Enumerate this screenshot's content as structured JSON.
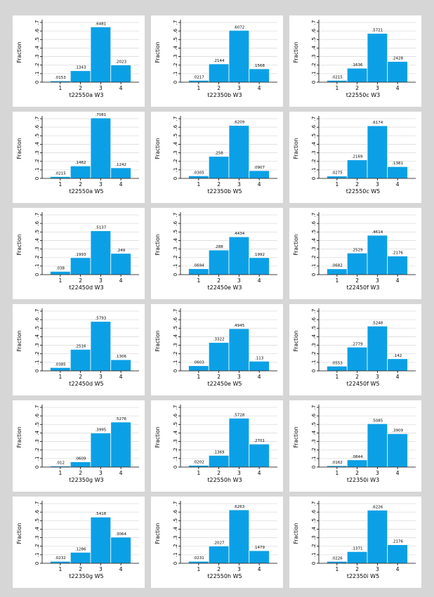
{
  "colors": {
    "bar": "#0ba0e6",
    "bar_edge": "#ffffff",
    "panel_bg": "#ffffff",
    "grid": "#dcdcdc",
    "axis": "#000000",
    "page_bg": "#d6d6d6"
  },
  "chart_data": [
    {
      "type": "bar",
      "xlabel": "t22550a W3",
      "ylabel": "Fraction",
      "categories": [
        "1",
        "2",
        "3",
        "4"
      ],
      "values": [
        0.0153,
        0.1343,
        0.6481,
        0.2023
      ],
      "value_labels": [
        ".0153",
        ".1343",
        ".6481",
        ".2023"
      ],
      "ylim": [
        0,
        0.7
      ],
      "yticks": [
        0,
        0.1,
        0.2,
        0.3,
        0.4,
        0.5,
        0.6,
        0.7
      ],
      "ytick_labels": [
        "0",
        ".1",
        ".2",
        ".3",
        ".4",
        ".5",
        ".6",
        ".7"
      ],
      "grid": true
    },
    {
      "type": "bar",
      "xlabel": "t22350b W3",
      "ylabel": "Fraction",
      "categories": [
        "1",
        "2",
        "3",
        "4"
      ],
      "values": [
        0.0217,
        0.2144,
        0.6072,
        0.1568
      ],
      "value_labels": [
        ".0217",
        ".2144",
        ".6072",
        ".1568"
      ],
      "ylim": [
        0,
        0.7
      ],
      "yticks": [
        0,
        0.1,
        0.2,
        0.3,
        0.4,
        0.5,
        0.6,
        0.7
      ],
      "ytick_labels": [
        "0",
        ".1",
        ".2",
        ".3",
        ".4",
        ".5",
        ".6",
        ".7"
      ],
      "grid": true
    },
    {
      "type": "bar",
      "xlabel": "t22550c W3",
      "ylabel": "Fraction",
      "categories": [
        "1",
        "2",
        "3",
        "4"
      ],
      "values": [
        0.0215,
        0.1636,
        0.5721,
        0.2428
      ],
      "value_labels": [
        ".0215",
        ".1636",
        ".5721",
        ".2428"
      ],
      "ylim": [
        0,
        0.7
      ],
      "yticks": [
        0,
        0.1,
        0.2,
        0.3,
        0.4,
        0.5,
        0.6,
        0.7
      ],
      "ytick_labels": [
        "0",
        ".1",
        ".2",
        ".3",
        ".4",
        ".5",
        ".6",
        ".7"
      ],
      "grid": true
    },
    {
      "type": "bar",
      "xlabel": "t22550a W5",
      "ylabel": "Fraction",
      "categories": [
        "1",
        "2",
        "3",
        "4"
      ],
      "values": [
        0.0215,
        0.1462,
        0.7081,
        0.1242
      ],
      "value_labels": [
        ".0215",
        ".1462",
        ".7081",
        ".1242"
      ],
      "ylim": [
        0,
        0.7
      ],
      "yticks": [
        0,
        0.1,
        0.2,
        0.3,
        0.4,
        0.5,
        0.6,
        0.7
      ],
      "ytick_labels": [
        "0",
        ".1",
        ".2",
        ".3",
        ".4",
        ".5",
        ".6",
        ".7"
      ],
      "grid": true
    },
    {
      "type": "bar",
      "xlabel": "t22350b W5",
      "ylabel": "Fraction",
      "categories": [
        "1",
        "2",
        "3",
        "4"
      ],
      "values": [
        0.0305,
        0.258,
        0.6209,
        0.0907
      ],
      "value_labels": [
        ".0305",
        ".258",
        ".6209",
        ".0907"
      ],
      "ylim": [
        0,
        0.7
      ],
      "yticks": [
        0,
        0.1,
        0.2,
        0.3,
        0.4,
        0.5,
        0.6,
        0.7
      ],
      "ytick_labels": [
        "0",
        ".1",
        ".2",
        ".3",
        ".4",
        ".5",
        ".6",
        ".7"
      ],
      "grid": true
    },
    {
      "type": "bar",
      "xlabel": "t22550c W5",
      "ylabel": "Fraction",
      "categories": [
        "1",
        "2",
        "3",
        "4"
      ],
      "values": [
        0.0275,
        0.2169,
        0.6174,
        0.1381
      ],
      "value_labels": [
        ".0275",
        ".2169",
        ".6174",
        ".1381"
      ],
      "ylim": [
        0,
        0.7
      ],
      "yticks": [
        0,
        0.1,
        0.2,
        0.3,
        0.4,
        0.5,
        0.6,
        0.7
      ],
      "ytick_labels": [
        "0",
        ".1",
        ".2",
        ".3",
        ".4",
        ".5",
        ".6",
        ".7"
      ],
      "grid": true
    },
    {
      "type": "bar",
      "xlabel": "t22450d W3",
      "ylabel": "Fraction",
      "categories": [
        "1",
        "2",
        "3",
        "4"
      ],
      "values": [
        0.038,
        0.1993,
        0.5137,
        0.249
      ],
      "value_labels": [
        ".038",
        ".1993",
        ".5137",
        ".249"
      ],
      "ylim": [
        0,
        0.7
      ],
      "yticks": [
        0,
        0.1,
        0.2,
        0.3,
        0.4,
        0.5,
        0.6,
        0.7
      ],
      "ytick_labels": [
        "0",
        ".1",
        ".2",
        ".3",
        ".4",
        ".5",
        ".6",
        ".7"
      ],
      "grid": true
    },
    {
      "type": "bar",
      "xlabel": "t22450e W3",
      "ylabel": "Fraction",
      "categories": [
        "1",
        "2",
        "3",
        "4"
      ],
      "values": [
        0.0694,
        0.288,
        0.4434,
        0.1992
      ],
      "value_labels": [
        ".0694",
        ".288",
        ".4434",
        ".1992"
      ],
      "ylim": [
        0,
        0.7
      ],
      "yticks": [
        0,
        0.1,
        0.2,
        0.3,
        0.4,
        0.5,
        0.6,
        0.7
      ],
      "ytick_labels": [
        "0",
        ".1",
        ".2",
        ".3",
        ".4",
        ".5",
        ".6",
        ".7"
      ],
      "grid": true
    },
    {
      "type": "bar",
      "xlabel": "t22450f W3",
      "ylabel": "Fraction",
      "categories": [
        "1",
        "2",
        "3",
        "4"
      ],
      "values": [
        0.0682,
        0.2529,
        0.4614,
        0.2176
      ],
      "value_labels": [
        ".0682",
        ".2529",
        ".4614",
        ".2176"
      ],
      "ylim": [
        0,
        0.7
      ],
      "yticks": [
        0,
        0.1,
        0.2,
        0.3,
        0.4,
        0.5,
        0.6,
        0.7
      ],
      "ytick_labels": [
        "0",
        ".1",
        ".2",
        ".3",
        ".4",
        ".5",
        ".6",
        ".7"
      ],
      "grid": true
    },
    {
      "type": "bar",
      "xlabel": "t22450d W5",
      "ylabel": "Fraction",
      "categories": [
        "1",
        "2",
        "3",
        "4"
      ],
      "values": [
        0.0385,
        0.2516,
        0.5793,
        0.1306
      ],
      "value_labels": [
        ".0385",
        ".2516",
        ".5793",
        ".1306"
      ],
      "ylim": [
        0,
        0.7
      ],
      "yticks": [
        0,
        0.1,
        0.2,
        0.3,
        0.4,
        0.5,
        0.6,
        0.7
      ],
      "ytick_labels": [
        "0",
        ".1",
        ".2",
        ".3",
        ".4",
        ".5",
        ".6",
        ".7"
      ],
      "grid": true
    },
    {
      "type": "bar",
      "xlabel": "t22450e W5",
      "ylabel": "Fraction",
      "categories": [
        "1",
        "2",
        "3",
        "4"
      ],
      "values": [
        0.0603,
        0.3322,
        0.4945,
        0.113
      ],
      "value_labels": [
        ".0603",
        ".3322",
        ".4945",
        ".113"
      ],
      "ylim": [
        0,
        0.7
      ],
      "yticks": [
        0,
        0.1,
        0.2,
        0.3,
        0.4,
        0.5,
        0.6,
        0.7
      ],
      "ytick_labels": [
        "0",
        ".1",
        ".2",
        ".3",
        ".4",
        ".5",
        ".6",
        ".7"
      ],
      "grid": true
    },
    {
      "type": "bar",
      "xlabel": "t22450f W5",
      "ylabel": "Fraction",
      "categories": [
        "1",
        "2",
        "3",
        "4"
      ],
      "values": [
        0.0553,
        0.2779,
        0.5248,
        0.142
      ],
      "value_labels": [
        ".0553",
        ".2779",
        ".5248",
        ".142"
      ],
      "ylim": [
        0,
        0.7
      ],
      "yticks": [
        0,
        0.1,
        0.2,
        0.3,
        0.4,
        0.5,
        0.6,
        0.7
      ],
      "ytick_labels": [
        "0",
        ".1",
        ".2",
        ".3",
        ".4",
        ".5",
        ".6",
        ".7"
      ],
      "grid": true
    },
    {
      "type": "bar",
      "xlabel": "t22350g W3",
      "ylabel": "Fraction",
      "categories": [
        "1",
        "2",
        "3",
        "4"
      ],
      "values": [
        0.012,
        0.0609,
        0.3995,
        0.5276
      ],
      "value_labels": [
        ".012",
        ".0609",
        ".3995",
        ".5276"
      ],
      "ylim": [
        0,
        0.7
      ],
      "yticks": [
        0,
        0.1,
        0.2,
        0.3,
        0.4,
        0.5,
        0.6,
        0.7
      ],
      "ytick_labels": [
        "0",
        ".1",
        ".2",
        ".3",
        ".4",
        ".5",
        ".6",
        ".7"
      ],
      "grid": true
    },
    {
      "type": "bar",
      "xlabel": "t22550h W3",
      "ylabel": "Fraction",
      "categories": [
        "1",
        "2",
        "3",
        "4"
      ],
      "values": [
        0.0202,
        0.1369,
        0.5728,
        0.2701
      ],
      "value_labels": [
        ".0202",
        ".1369",
        ".5728",
        ".2701"
      ],
      "ylim": [
        0,
        0.7
      ],
      "yticks": [
        0,
        0.1,
        0.2,
        0.3,
        0.4,
        0.5,
        0.6,
        0.7
      ],
      "ytick_labels": [
        "0",
        ".1",
        ".2",
        ".3",
        ".4",
        ".5",
        ".6",
        ".7"
      ],
      "grid": true
    },
    {
      "type": "bar",
      "xlabel": "t22350i W3",
      "ylabel": "Fraction",
      "categories": [
        "1",
        "2",
        "3",
        "4"
      ],
      "values": [
        0.0162,
        0.0844,
        0.5085,
        0.3909
      ],
      "value_labels": [
        ".0162",
        ".0844",
        ".5085",
        ".3909"
      ],
      "ylim": [
        0,
        0.7
      ],
      "yticks": [
        0,
        0.1,
        0.2,
        0.3,
        0.4,
        0.5,
        0.6,
        0.7
      ],
      "ytick_labels": [
        "0",
        ".1",
        ".2",
        ".3",
        ".4",
        ".5",
        ".6",
        ".7"
      ],
      "grid": true
    },
    {
      "type": "bar",
      "xlabel": "t22350g W5",
      "ylabel": "Fraction",
      "categories": [
        "1",
        "2",
        "3",
        "4"
      ],
      "values": [
        0.0232,
        0.1286,
        0.5418,
        0.3064
      ],
      "value_labels": [
        ".0232",
        ".1286",
        ".5418",
        ".3064"
      ],
      "ylim": [
        0,
        0.7
      ],
      "yticks": [
        0,
        0.1,
        0.2,
        0.3,
        0.4,
        0.5,
        0.6,
        0.7
      ],
      "ytick_labels": [
        "0",
        ".1",
        ".2",
        ".3",
        ".4",
        ".5",
        ".6",
        ".7"
      ],
      "grid": true
    },
    {
      "type": "bar",
      "xlabel": "t22550h W5",
      "ylabel": "Fraction",
      "categories": [
        "1",
        "2",
        "3",
        "4"
      ],
      "values": [
        0.0231,
        0.2027,
        0.6263,
        0.1479
      ],
      "value_labels": [
        ".0231",
        ".2027",
        ".6263",
        ".1479"
      ],
      "ylim": [
        0,
        0.7
      ],
      "yticks": [
        0,
        0.1,
        0.2,
        0.3,
        0.4,
        0.5,
        0.6,
        0.7
      ],
      "ytick_labels": [
        "0",
        ".1",
        ".2",
        ".3",
        ".4",
        ".5",
        ".6",
        ".7"
      ],
      "grid": true
    },
    {
      "type": "bar",
      "xlabel": "t22350i W5",
      "ylabel": "Fraction",
      "categories": [
        "1",
        "2",
        "3",
        "4"
      ],
      "values": [
        0.0226,
        0.1371,
        0.6226,
        0.2176
      ],
      "value_labels": [
        ".0226",
        ".1371",
        ".6226",
        ".2176"
      ],
      "ylim": [
        0,
        0.7
      ],
      "yticks": [
        0,
        0.1,
        0.2,
        0.3,
        0.4,
        0.5,
        0.6,
        0.7
      ],
      "ytick_labels": [
        "0",
        ".1",
        ".2",
        ".3",
        ".4",
        ".5",
        ".6",
        ".7"
      ],
      "grid": true
    }
  ]
}
